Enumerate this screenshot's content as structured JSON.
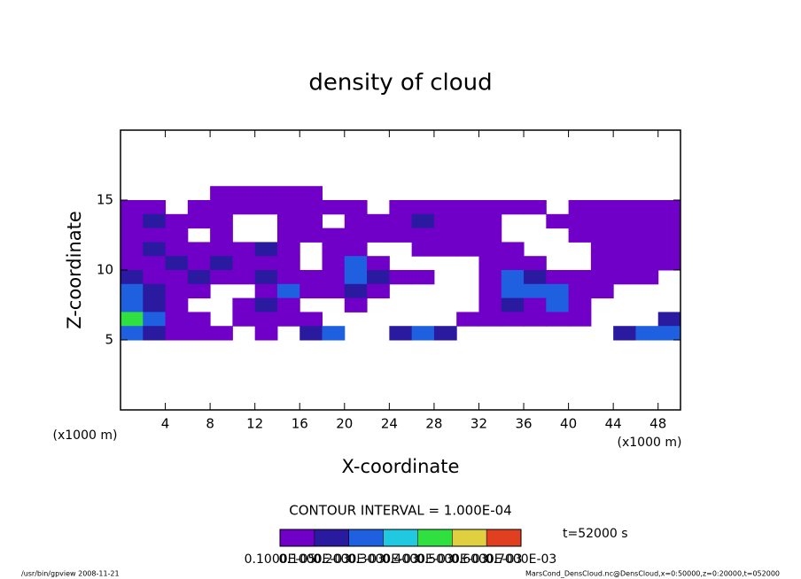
{
  "chart_data": {
    "type": "heatmap",
    "title": "density of cloud",
    "x_label": "X-coordinate",
    "y_label": "Z-coordinate",
    "x_unit_left": "(x1000 m)",
    "x_unit_right": "(x1000 m)",
    "contour_interval": "CONTOUR INTERVAL = 1.000E-04",
    "time_label": "t=52000 s",
    "footer_left": "/usr/bin/gpview   2008-11-21",
    "footer_right": "MarsCond_DensCloud.nc@DensCloud,x=0:50000,z=0:20000,t=052000",
    "xlim": [
      0,
      50
    ],
    "ylim": [
      0,
      20
    ],
    "xticks": [
      4,
      8,
      12,
      16,
      20,
      24,
      28,
      32,
      36,
      40,
      44,
      48
    ],
    "yticks": [
      5,
      10,
      15
    ],
    "x": [
      1,
      3,
      5,
      7,
      9,
      11,
      13,
      15,
      17,
      19,
      21,
      23,
      25,
      27,
      29,
      31,
      33,
      35,
      37,
      39,
      41,
      43,
      45,
      47,
      49
    ],
    "z": [
      15.5,
      14.5,
      13.5,
      12.5,
      11.5,
      10.5,
      9.5,
      8.5,
      7.5,
      6.5,
      5.5
    ],
    "values": [
      [
        null,
        null,
        null,
        null,
        5e-05,
        5e-05,
        5e-05,
        5e-05,
        5e-05,
        null,
        null,
        null,
        null,
        null,
        null,
        null,
        null,
        null,
        null,
        null,
        null,
        null,
        null,
        null,
        null
      ],
      [
        5e-05,
        5e-05,
        null,
        5e-05,
        5e-05,
        5e-05,
        5e-05,
        5e-05,
        5e-05,
        5e-05,
        5e-05,
        null,
        5e-05,
        5e-05,
        5e-05,
        5e-05,
        5e-05,
        5e-05,
        5e-05,
        null,
        5e-05,
        5e-05,
        5e-05,
        5e-05,
        5e-05
      ],
      [
        5e-05,
        0.00015,
        5e-05,
        5e-05,
        5e-05,
        null,
        null,
        5e-05,
        5e-05,
        null,
        5e-05,
        5e-05,
        5e-05,
        0.00015,
        5e-05,
        5e-05,
        5e-05,
        null,
        null,
        5e-05,
        5e-05,
        5e-05,
        5e-05,
        5e-05,
        5e-05
      ],
      [
        5e-05,
        5e-05,
        5e-05,
        null,
        5e-05,
        null,
        null,
        5e-05,
        5e-05,
        5e-05,
        5e-05,
        5e-05,
        5e-05,
        5e-05,
        5e-05,
        5e-05,
        5e-05,
        null,
        null,
        null,
        5e-05,
        5e-05,
        5e-05,
        5e-05,
        5e-05
      ],
      [
        5e-05,
        0.00015,
        5e-05,
        5e-05,
        5e-05,
        5e-05,
        0.00015,
        5e-05,
        null,
        5e-05,
        5e-05,
        null,
        null,
        5e-05,
        5e-05,
        5e-05,
        5e-05,
        5e-05,
        null,
        null,
        null,
        5e-05,
        5e-05,
        5e-05,
        5e-05
      ],
      [
        5e-05,
        5e-05,
        0.00015,
        5e-05,
        0.00015,
        5e-05,
        5e-05,
        5e-05,
        null,
        5e-05,
        0.00025,
        5e-05,
        null,
        null,
        null,
        null,
        5e-05,
        5e-05,
        5e-05,
        null,
        null,
        5e-05,
        5e-05,
        5e-05,
        5e-05
      ],
      [
        0.00015,
        5e-05,
        5e-05,
        0.00015,
        5e-05,
        5e-05,
        0.00015,
        5e-05,
        5e-05,
        5e-05,
        0.00025,
        0.00015,
        5e-05,
        5e-05,
        null,
        null,
        5e-05,
        0.00025,
        0.00015,
        5e-05,
        5e-05,
        5e-05,
        5e-05,
        5e-05,
        null
      ],
      [
        0.00025,
        0.00015,
        5e-05,
        5e-05,
        null,
        null,
        5e-05,
        0.00025,
        5e-05,
        5e-05,
        0.00015,
        5e-05,
        null,
        null,
        null,
        null,
        5e-05,
        0.00025,
        0.00025,
        0.00025,
        5e-05,
        5e-05,
        null,
        null,
        null
      ],
      [
        0.00025,
        0.00015,
        5e-05,
        null,
        null,
        5e-05,
        0.00015,
        5e-05,
        null,
        null,
        5e-05,
        null,
        null,
        null,
        null,
        null,
        5e-05,
        0.00015,
        5e-05,
        0.00025,
        5e-05,
        null,
        null,
        null,
        null
      ],
      [
        0.00045,
        0.00025,
        5e-05,
        5e-05,
        null,
        5e-05,
        5e-05,
        5e-05,
        5e-05,
        null,
        null,
        null,
        null,
        null,
        null,
        5e-05,
        5e-05,
        5e-05,
        5e-05,
        5e-05,
        5e-05,
        null,
        null,
        null,
        0.00015
      ],
      [
        0.00025,
        0.00015,
        5e-05,
        5e-05,
        5e-05,
        null,
        5e-05,
        null,
        0.00015,
        0.00025,
        null,
        null,
        0.00015,
        0.00025,
        0.00015,
        null,
        null,
        null,
        null,
        null,
        null,
        null,
        0.00015,
        0.00025,
        0.00025
      ]
    ],
    "colorbar_ticks": [
      {
        "value": 1e-06,
        "label": "0.1000E-05"
      },
      {
        "value": 0.0001,
        "label": "0.1000E-03"
      },
      {
        "value": 0.0002,
        "label": "0.2000E-03"
      },
      {
        "value": 0.0003,
        "label": "0.3000E-03"
      },
      {
        "value": 0.0004,
        "label": "0.4000E-03"
      },
      {
        "value": 0.0005,
        "label": "0.5000E-03"
      },
      {
        "value": 0.0006,
        "label": "0.6000E-03"
      },
      {
        "value": 0.0007,
        "label": "0.7000E-03"
      }
    ],
    "colors": [
      "#7000c8",
      "#2a1aa0",
      "#1e60e0",
      "#20c8e0",
      "#30e040",
      "#e0d040",
      "#e04020"
    ]
  }
}
